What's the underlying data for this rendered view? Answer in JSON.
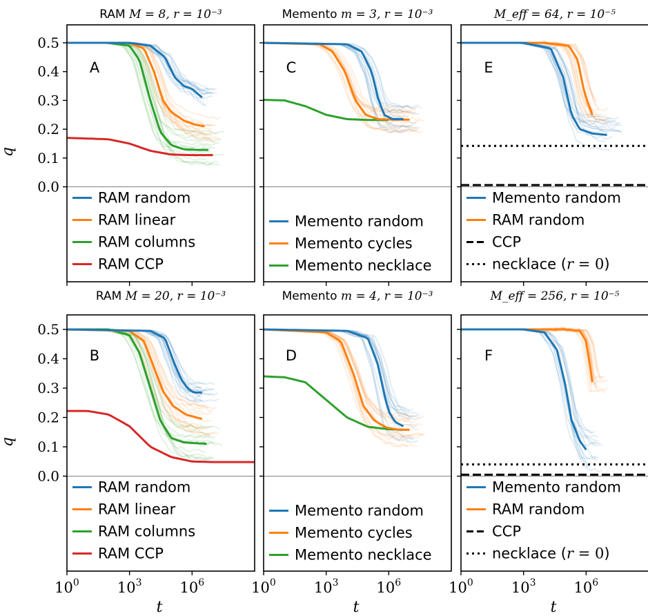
{
  "y_axis_label": "q",
  "x_axis_label": "t",
  "y_ticks": [
    "0.0",
    "0.1",
    "0.2",
    "0.3",
    "0.4",
    "0.5"
  ],
  "x_ticks": [
    {
      "base": "10",
      "exp": "0"
    },
    {
      "base": "10",
      "exp": "3"
    },
    {
      "base": "10",
      "exp": "6"
    }
  ],
  "colors": {
    "blue": "#1f77b4",
    "orange": "#ff7f0e",
    "green": "#2ca02c",
    "red": "#d62728",
    "black": "#000000"
  },
  "panels": [
    {
      "label": "A",
      "title_prefix": "RAM",
      "title_math": "M = 8, r = 10⁻³"
    },
    {
      "label": "C",
      "title_prefix": "Memento",
      "title_math": "m = 3, r = 10⁻³"
    },
    {
      "label": "E",
      "title_prefix": "",
      "title_math": "M_eff = 64, r = 10⁻⁵"
    },
    {
      "label": "B",
      "title_prefix": "RAM",
      "title_math": "M = 20, r = 10⁻³"
    },
    {
      "label": "D",
      "title_prefix": "Memento",
      "title_math": "m = 4, r = 10⁻³"
    },
    {
      "label": "F",
      "title_prefix": "",
      "title_math": "M_eff = 256, r = 10⁻⁵"
    }
  ],
  "legends": [
    [
      "RAM random",
      "RAM linear",
      "RAM columns",
      "RAM CCP"
    ],
    [
      "Memento random",
      "Memento cycles",
      "Memento necklace"
    ],
    [
      "Memento random",
      "RAM random",
      "CCP",
      "necklace (r = 0)"
    ],
    [
      "RAM random",
      "RAM linear",
      "RAM columns",
      "RAM CCP"
    ],
    [
      "Memento random",
      "Memento cycles",
      "Memento necklace"
    ],
    [
      "Memento random",
      "RAM random",
      "CCP",
      "necklace (r = 0)"
    ]
  ],
  "chart_data": [
    {
      "type": "line",
      "title": "RAM M = 8, r = 10^-3",
      "xscale": "log",
      "xlim": [
        1,
        1000000000.0
      ],
      "ylim": [
        0,
        0.55
      ],
      "series": [
        {
          "name": "RAM random",
          "color": "#1f77b4",
          "x": [
            1,
            1000,
            10000,
            50000,
            150000,
            400000,
            1000000,
            3000000
          ],
          "y": [
            0.5,
            0.5,
            0.49,
            0.45,
            0.38,
            0.35,
            0.34,
            0.31
          ]
        },
        {
          "name": "RAM linear",
          "color": "#ff7f0e",
          "x": [
            1,
            1000,
            5000,
            15000,
            40000,
            100000,
            400000,
            1500000,
            4000000
          ],
          "y": [
            0.5,
            0.5,
            0.48,
            0.4,
            0.3,
            0.26,
            0.23,
            0.215,
            0.21
          ]
        },
        {
          "name": "RAM columns",
          "color": "#2ca02c",
          "x": [
            1,
            100,
            1000,
            3000,
            10000,
            30000,
            100000,
            400000,
            2000000,
            6000000
          ],
          "y": [
            0.5,
            0.5,
            0.49,
            0.44,
            0.3,
            0.19,
            0.145,
            0.13,
            0.128,
            0.128
          ]
        },
        {
          "name": "RAM CCP",
          "color": "#d62728",
          "x": [
            1,
            100,
            1000,
            10000,
            100000,
            1000000,
            10000000
          ],
          "y": [
            0.17,
            0.165,
            0.15,
            0.125,
            0.112,
            0.11,
            0.11
          ]
        }
      ]
    },
    {
      "type": "line",
      "title": "Memento m = 3, r = 10^-3",
      "xscale": "log",
      "xlim": [
        1,
        1000000000.0
      ],
      "ylim": [
        0,
        0.55
      ],
      "series": [
        {
          "name": "Memento random",
          "color": "#1f77b4",
          "x": [
            1,
            10000,
            50000,
            150000,
            300000,
            600000,
            1500000,
            5000000
          ],
          "y": [
            0.5,
            0.495,
            0.47,
            0.4,
            0.31,
            0.25,
            0.235,
            0.235
          ]
        },
        {
          "name": "Memento cycles",
          "color": "#ff7f0e",
          "x": [
            1,
            500,
            2000,
            8000,
            25000,
            80000,
            300000,
            2000000,
            10000000
          ],
          "y": [
            0.5,
            0.495,
            0.47,
            0.4,
            0.3,
            0.25,
            0.235,
            0.233,
            0.233
          ]
        },
        {
          "name": "Memento necklace",
          "color": "#2ca02c",
          "x": [
            1,
            10,
            100,
            1000,
            10000,
            100000,
            1000000
          ],
          "y": [
            0.302,
            0.3,
            0.28,
            0.25,
            0.235,
            0.232,
            0.232
          ]
        }
      ]
    },
    {
      "type": "line",
      "title": "M_eff = 64, r = 10^-5",
      "xscale": "log",
      "xlim": [
        1,
        1000000000.0
      ],
      "ylim": [
        0,
        0.55
      ],
      "series": [
        {
          "name": "Memento random",
          "color": "#1f77b4",
          "x": [
            1,
            1000,
            20000,
            80000,
            200000,
            500000,
            2000000,
            10000000
          ],
          "y": [
            0.5,
            0.5,
            0.48,
            0.38,
            0.25,
            0.2,
            0.185,
            0.18
          ]
        },
        {
          "name": "RAM random",
          "color": "#ff7f0e",
          "x": [
            1,
            10000,
            150000,
            400000,
            700000,
            1100000,
            2000000
          ],
          "y": [
            0.5,
            0.5,
            0.49,
            0.44,
            0.35,
            0.3,
            0.25
          ]
        },
        {
          "name": "CCP",
          "color": "#000000",
          "style": "dashed",
          "x": [
            1,
            1000000000
          ],
          "y": [
            0.006,
            0.006
          ]
        },
        {
          "name": "necklace (r = 0)",
          "color": "#000000",
          "style": "dotted",
          "x": [
            1,
            1000000000
          ],
          "y": [
            0.142,
            0.142
          ]
        }
      ]
    },
    {
      "type": "line",
      "title": "RAM M = 20, r = 10^-3",
      "xscale": "log",
      "xlim": [
        1,
        1000000000.0
      ],
      "ylim": [
        0,
        0.55
      ],
      "series": [
        {
          "name": "RAM random",
          "color": "#1f77b4",
          "x": [
            1,
            10000,
            50000,
            150000,
            300000,
            600000,
            1200000,
            3000000
          ],
          "y": [
            0.5,
            0.495,
            0.47,
            0.38,
            0.33,
            0.3,
            0.285,
            0.285
          ]
        },
        {
          "name": "RAM linear",
          "color": "#ff7f0e",
          "x": [
            1,
            1000,
            5000,
            15000,
            40000,
            120000,
            500000,
            3000000
          ],
          "y": [
            0.5,
            0.495,
            0.46,
            0.37,
            0.29,
            0.24,
            0.21,
            0.195
          ]
        },
        {
          "name": "RAM columns",
          "color": "#2ca02c",
          "x": [
            1,
            100,
            1000,
            3000,
            10000,
            30000,
            100000,
            400000,
            5000000
          ],
          "y": [
            0.5,
            0.5,
            0.48,
            0.42,
            0.3,
            0.19,
            0.13,
            0.115,
            0.11
          ]
        },
        {
          "name": "RAM CCP",
          "color": "#d62728",
          "x": [
            1,
            10,
            100,
            1000,
            10000,
            100000,
            1000000,
            10000000,
            1000000000
          ],
          "y": [
            0.222,
            0.222,
            0.21,
            0.17,
            0.1,
            0.065,
            0.05,
            0.048,
            0.048
          ]
        }
      ]
    },
    {
      "type": "line",
      "title": "Memento m = 4, r = 10^-3",
      "xscale": "log",
      "xlim": [
        1,
        1000000000.0
      ],
      "ylim": [
        0,
        0.55
      ],
      "series": [
        {
          "name": "Memento random",
          "color": "#1f77b4",
          "x": [
            1,
            10000,
            100000,
            300000,
            600000,
            1000000,
            2000000,
            5000000
          ],
          "y": [
            0.5,
            0.495,
            0.47,
            0.38,
            0.28,
            0.22,
            0.185,
            0.17
          ]
        },
        {
          "name": "Memento cycles",
          "color": "#ff7f0e",
          "x": [
            1,
            1000,
            5000,
            20000,
            60000,
            200000,
            800000,
            3000000,
            10000000
          ],
          "y": [
            0.5,
            0.49,
            0.46,
            0.35,
            0.24,
            0.19,
            0.165,
            0.158,
            0.158
          ]
        },
        {
          "name": "Memento necklace",
          "color": "#2ca02c",
          "x": [
            1,
            10,
            100,
            1000,
            10000,
            100000,
            1000000,
            5000000
          ],
          "y": [
            0.34,
            0.337,
            0.32,
            0.26,
            0.2,
            0.168,
            0.16,
            0.158
          ]
        }
      ]
    },
    {
      "type": "line",
      "title": "M_eff = 256, r = 10^-5",
      "xscale": "log",
      "xlim": [
        1,
        1000000000.0
      ],
      "ylim": [
        0,
        0.55
      ],
      "series": [
        {
          "name": "Memento random",
          "color": "#1f77b4",
          "x": [
            1,
            1000,
            10000,
            40000,
            100000,
            200000,
            500000,
            1000000
          ],
          "y": [
            0.5,
            0.5,
            0.49,
            0.43,
            0.31,
            0.19,
            0.12,
            0.09
          ]
        },
        {
          "name": "RAM random",
          "color": "#ff7f0e",
          "x": [
            1,
            100000,
            500000,
            1000000,
            1500000,
            2000000
          ],
          "y": [
            0.5,
            0.5,
            0.495,
            0.46,
            0.38,
            0.32
          ]
        },
        {
          "name": "CCP",
          "color": "#000000",
          "style": "dashed",
          "x": [
            1,
            1000000000
          ],
          "y": [
            0.005,
            0.005
          ]
        },
        {
          "name": "necklace (r = 0)",
          "color": "#000000",
          "style": "dotted",
          "x": [
            1,
            1000000000
          ],
          "y": [
            0.04,
            0.04
          ]
        }
      ]
    }
  ]
}
